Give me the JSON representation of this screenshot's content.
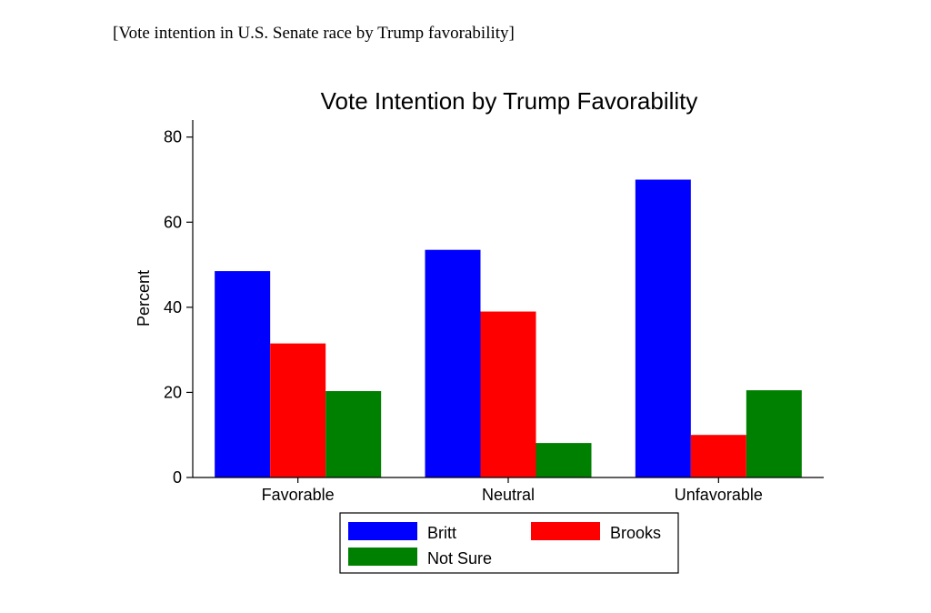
{
  "caption": "[Vote intention in U.S. Senate race by Trump favorability]",
  "chart_data": {
    "type": "bar",
    "title": "Vote Intention by Trump Favorability",
    "xlabel": "",
    "ylabel": "Percent",
    "ylim": [
      0,
      84
    ],
    "yticks": [
      0,
      20,
      40,
      60,
      80
    ],
    "categories": [
      "Favorable",
      "Neutral",
      "Unfavorable"
    ],
    "series": [
      {
        "name": "Britt",
        "color": "#0000ff",
        "values": [
          48.5,
          53.5,
          70
        ]
      },
      {
        "name": "Brooks",
        "color": "#ff0000",
        "values": [
          31.5,
          39,
          10
        ]
      },
      {
        "name": "Not Sure",
        "color": "#008000",
        "values": [
          20.3,
          8.1,
          20.5
        ]
      }
    ],
    "legend": "bottom",
    "grid": false
  }
}
